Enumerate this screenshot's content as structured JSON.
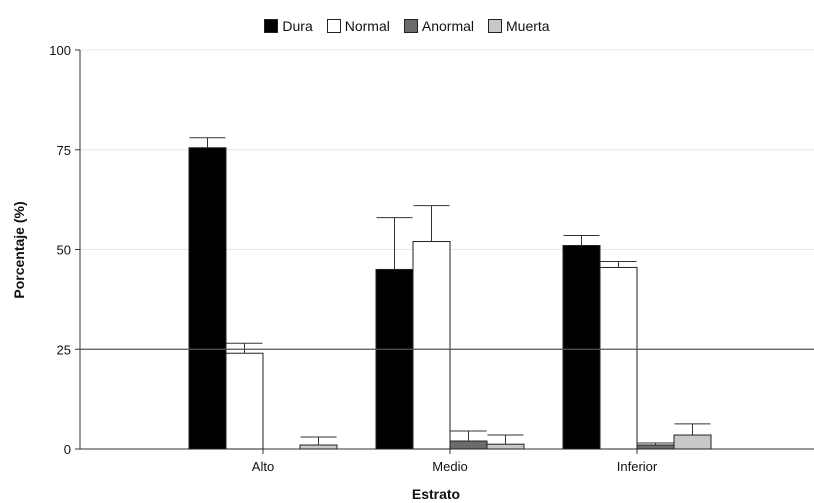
{
  "chart_data": {
    "type": "bar",
    "xlabel": "Estrato",
    "ylabel": "Porcentaje (%)",
    "categories": [
      "Alto",
      "Medio",
      "Inferior"
    ],
    "ylim": [
      0,
      100
    ],
    "yticks": [
      0,
      25,
      50,
      75,
      100
    ],
    "legend_position": "top-center",
    "grid": "horizontal",
    "reference_line": 25,
    "series": [
      {
        "name": "Dura",
        "color": "#000000",
        "values": [
          75.5,
          45,
          51
        ],
        "errors": [
          2.5,
          13,
          2.5
        ]
      },
      {
        "name": "Normal",
        "color": "#ffffff",
        "values": [
          24,
          52,
          45.5
        ],
        "errors": [
          2.5,
          9,
          1.5
        ]
      },
      {
        "name": "Anormal",
        "color": "#6b6b6b",
        "values": [
          0,
          2,
          1
        ],
        "errors": [
          0,
          2.5,
          0.5
        ]
      },
      {
        "name": "Muerta",
        "color": "#c8c8c8",
        "values": [
          1,
          1.2,
          3.5
        ],
        "errors": [
          2,
          2.3,
          2.8
        ]
      }
    ]
  }
}
